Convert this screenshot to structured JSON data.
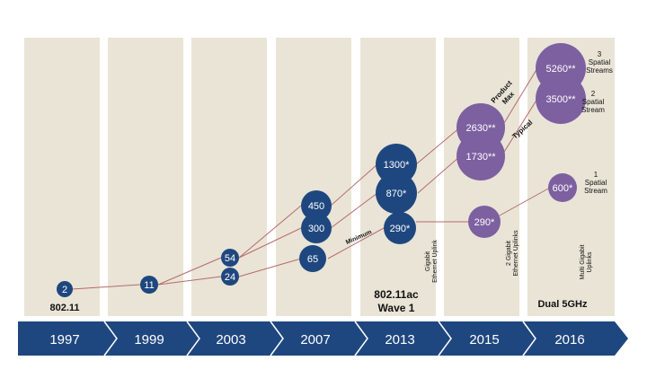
{
  "colors": {
    "column_bg": "#e9e4d6",
    "navy": "#1f477f",
    "purple": "#7d60a0",
    "line": "#b76a6a",
    "arrow_bar": "#1f477f"
  },
  "years": [
    "1997",
    "1999",
    "2003",
    "2007",
    "2013",
    "2015",
    "2016"
  ],
  "column_labels": {
    "c1997": "802.11",
    "c2013_line1": "802.11ac",
    "c2013_line2": "Wave 1",
    "c2016": "Dual 5GHz"
  },
  "bubbles": [
    {
      "id": "b-2",
      "value": "2",
      "kind": "navy"
    },
    {
      "id": "b-11",
      "value": "11",
      "kind": "navy"
    },
    {
      "id": "b-54",
      "value": "54",
      "kind": "navy"
    },
    {
      "id": "b-24",
      "value": "24",
      "kind": "navy"
    },
    {
      "id": "b-450",
      "value": "450",
      "kind": "navy"
    },
    {
      "id": "b-300",
      "value": "300",
      "kind": "navy"
    },
    {
      "id": "b-65",
      "value": "65",
      "kind": "navy"
    },
    {
      "id": "b-1300",
      "value": "1300*",
      "kind": "navy"
    },
    {
      "id": "b-870",
      "value": "870*",
      "kind": "navy"
    },
    {
      "id": "b-290a",
      "value": "290*",
      "kind": "navy"
    },
    {
      "id": "b-2630",
      "value": "2630**",
      "kind": "purple"
    },
    {
      "id": "b-1730",
      "value": "1730**",
      "kind": "purple"
    },
    {
      "id": "b-290b",
      "value": "290*",
      "kind": "purple"
    },
    {
      "id": "b-5260",
      "value": "5260**",
      "kind": "purple"
    },
    {
      "id": "b-3500",
      "value": "3500**",
      "kind": "purple"
    },
    {
      "id": "b-600",
      "value": "600*",
      "kind": "purple"
    }
  ],
  "annotations": {
    "product_max_line1": "Product",
    "product_max_line2": "Max",
    "typical": "Typical",
    "minimum": "Minimum",
    "gig_uplink_line1": "Gigabit",
    "gig_uplink_line2": "Ethernet Uplink",
    "two_gig_line1": "2 Gigabit",
    "two_gig_line2": "Ethernet Uplinks",
    "multi_gig_line1": "Multi Gigabit",
    "multi_gig_line2": "Uplinks",
    "ss3_line1": "3",
    "ss3_line2": "Spatial",
    "ss3_line3": "Streams",
    "ss2_line1": "2",
    "ss2_line2": "Spatial",
    "ss2_line3": "Stream",
    "ss1_line1": "1",
    "ss1_line2": "Spatial",
    "ss1_line3": "Stream"
  }
}
